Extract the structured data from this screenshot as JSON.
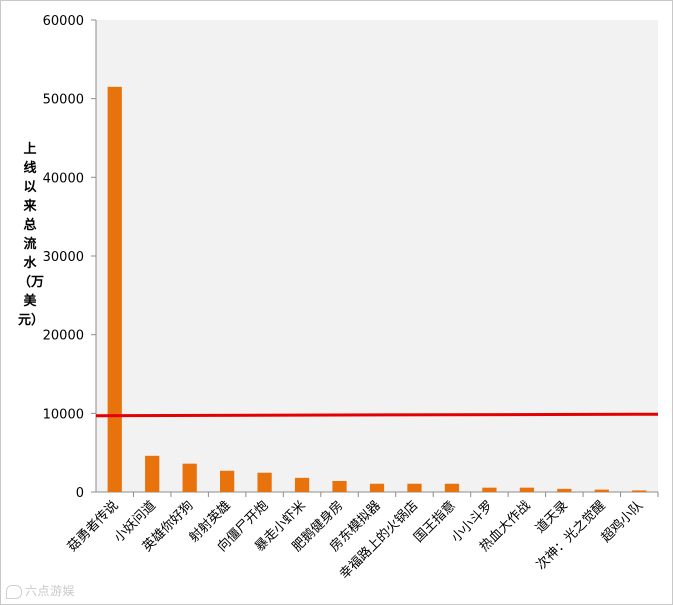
{
  "chart_data": {
    "type": "bar",
    "ylabel": "上线以来总流水（万美元）",
    "xlabel": "",
    "ylim": [
      0,
      60000
    ],
    "yticks": [
      0,
      10000,
      20000,
      30000,
      40000,
      50000,
      60000
    ],
    "grid": false,
    "legend": "none",
    "bar_color": "#E8720C",
    "plot_bg": "#F2F2F2",
    "reference_line": {
      "value": 9700,
      "color": "#E30000"
    },
    "categories": [
      "菇勇者传说",
      "小妖问道",
      "英雄你好狗",
      "射射英雄",
      "向僵尸开炮",
      "暴走小虾米",
      "肥鹅健身房",
      "房东模拟器",
      "幸福路上的火锅店",
      "国王指意",
      "小小斗罗",
      "热血大作战",
      "道天录",
      "次神：光之觉醒",
      "超鸡小队"
    ],
    "values": [
      51500,
      4600,
      3600,
      2700,
      2450,
      1800,
      1400,
      1050,
      1050,
      1050,
      550,
      550,
      400,
      300,
      200
    ]
  },
  "watermark": {
    "text": "六点游娱"
  }
}
